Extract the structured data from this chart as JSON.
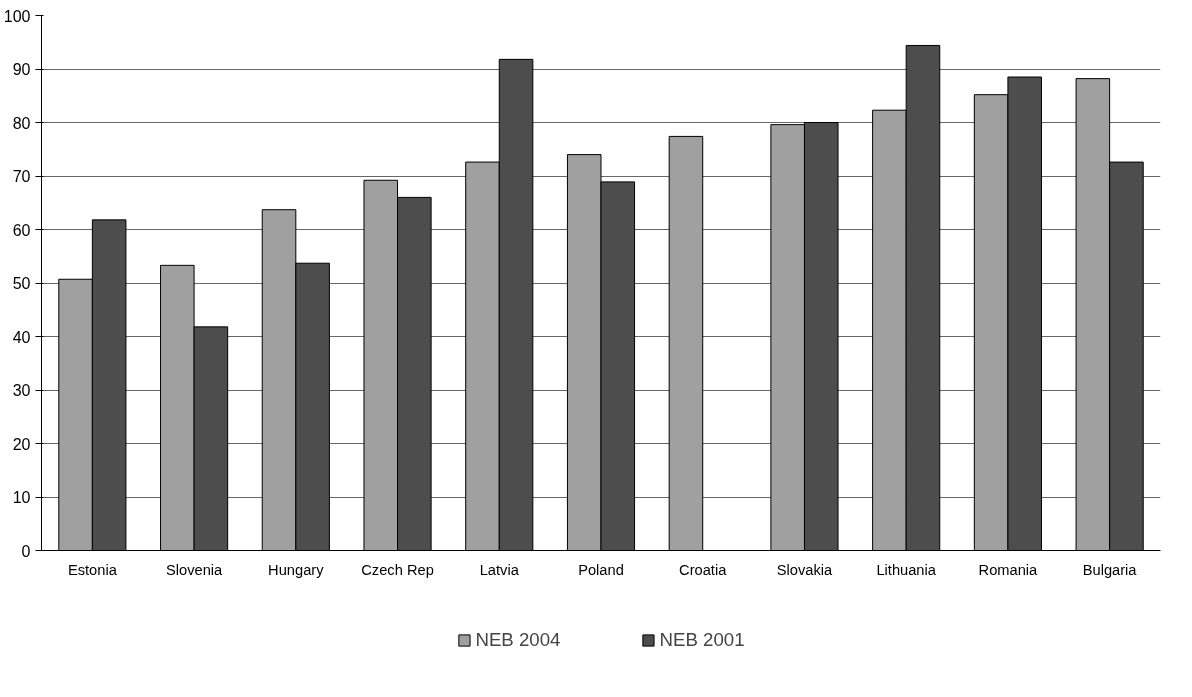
{
  "chart_data": {
    "type": "bar",
    "categories": [
      "Estonia",
      "Slovenia",
      "Hungary",
      "Czech Rep",
      "Latvia",
      "Poland",
      "Croatia",
      "Slovakia",
      "Lithuania",
      "Romania",
      "Bulgaria"
    ],
    "series": [
      {
        "name": "NEB 2004",
        "color": "#a0a0a0",
        "values": [
          50.7,
          53.3,
          63.7,
          69.2,
          72.6,
          74.0,
          77.4,
          79.6,
          82.3,
          85.2,
          88.2
        ]
      },
      {
        "name": "NEB 2001",
        "color": "#4d4d4d",
        "values": [
          61.8,
          41.8,
          53.7,
          66.0,
          91.8,
          68.9,
          null,
          80.0,
          94.4,
          88.5,
          72.6
        ]
      }
    ],
    "ylim": [
      0,
      100
    ],
    "yticks": [
      0,
      10,
      20,
      30,
      40,
      50,
      60,
      70,
      80,
      90,
      100
    ],
    "grid": "y",
    "legend": "bottom"
  }
}
